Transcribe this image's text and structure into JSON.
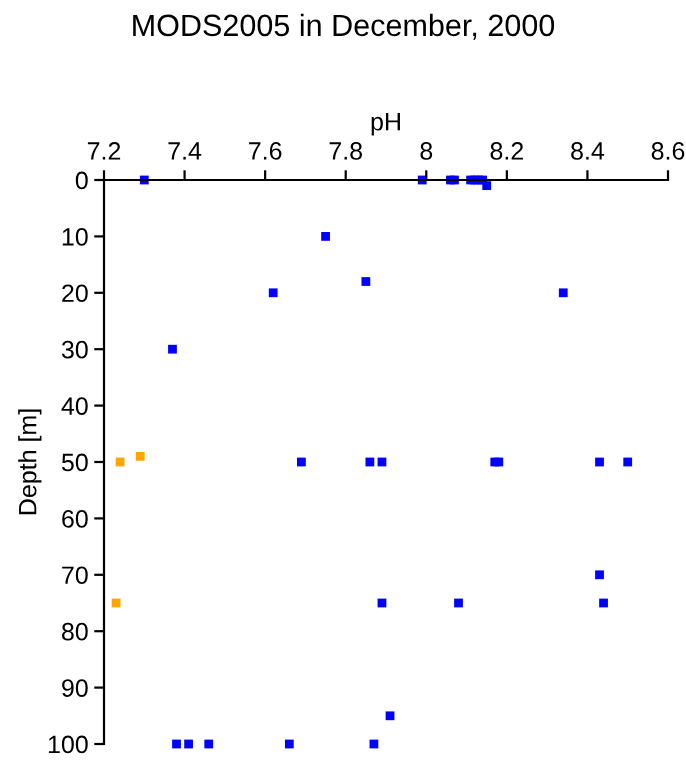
{
  "chart_data": {
    "type": "scatter",
    "title": "MODS2005 in December, 2000",
    "xlabel": "pH",
    "ylabel": "Depth [m]",
    "marker": "square",
    "grid": false,
    "legend": false,
    "xlim": [
      7.2,
      8.6
    ],
    "xticks": [
      7.2,
      7.4,
      7.6,
      7.8,
      8,
      8.2,
      8.4,
      8.6
    ],
    "ylim": [
      100,
      0
    ],
    "yticks": [
      0,
      10,
      20,
      30,
      40,
      50,
      60,
      70,
      80,
      90,
      100
    ],
    "series": [
      {
        "color": "#0000ff",
        "x": [
          7.3,
          7.99,
          8.06,
          8.07,
          8.11,
          8.12,
          8.13,
          8.14,
          8.15,
          7.75,
          7.85,
          7.62,
          8.34,
          7.37,
          7.69,
          7.86,
          7.89,
          8.17,
          8.18,
          8.43,
          8.5,
          8.43,
          7.89,
          8.08,
          8.44,
          7.91,
          7.38,
          7.41,
          7.46,
          7.66,
          7.87
        ],
        "values": [
          0,
          0,
          0,
          0,
          0,
          0,
          0,
          0,
          1,
          10,
          18,
          20,
          20,
          30,
          50,
          50,
          50,
          50,
          50,
          50,
          50,
          70,
          75,
          75,
          75,
          95,
          100,
          100,
          100,
          100,
          100
        ]
      },
      {
        "color": "#ffa500",
        "x": [
          7.24,
          7.29,
          7.23
        ],
        "values": [
          50,
          49,
          75
        ]
      }
    ]
  }
}
